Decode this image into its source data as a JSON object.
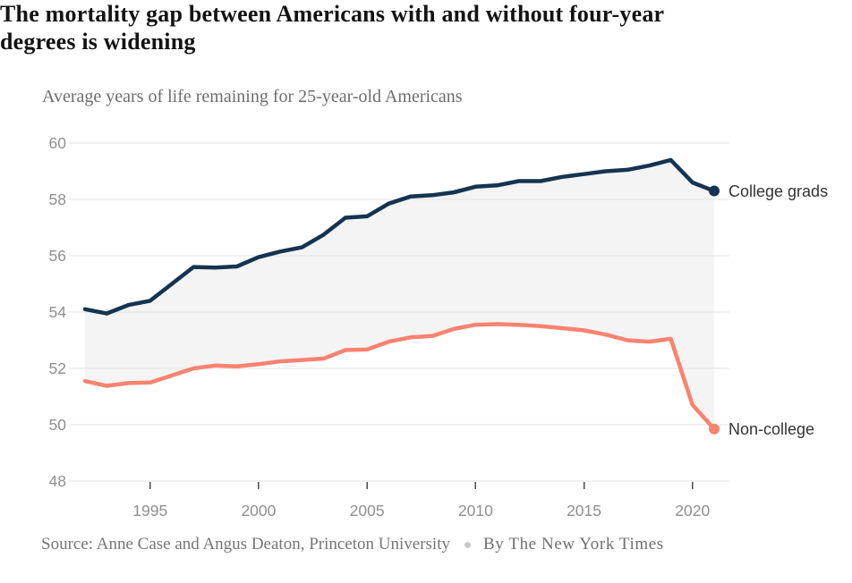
{
  "header": {
    "title_line1": "The mortality gap between Americans with and without four-year",
    "title_line2": "degrees is widening",
    "subtitle": "Average years of life remaining for 25-year-old Americans"
  },
  "footer": {
    "source": "Source: Anne Case and Angus Deaton, Princeton University",
    "byline": "By The New York Times"
  },
  "chart_data": {
    "type": "line",
    "title": "The mortality gap between Americans with and without four-year degrees is widening",
    "subtitle": "Average years of life remaining for 25-year-old Americans",
    "xlabel": "",
    "ylabel": "",
    "x": [
      1992,
      1993,
      1994,
      1995,
      1996,
      1997,
      1998,
      1999,
      2000,
      2001,
      2002,
      2003,
      2004,
      2005,
      2006,
      2007,
      2008,
      2009,
      2010,
      2011,
      2012,
      2013,
      2014,
      2015,
      2016,
      2017,
      2018,
      2019,
      2020,
      2021
    ],
    "series": [
      {
        "name": "College grads",
        "color": "#143451",
        "values": [
          54.1,
          53.95,
          54.25,
          54.4,
          55.0,
          55.6,
          55.58,
          55.62,
          55.95,
          56.15,
          56.3,
          56.75,
          57.35,
          57.4,
          57.85,
          58.1,
          58.15,
          58.25,
          58.45,
          58.5,
          58.65,
          58.65,
          58.8,
          58.9,
          59.0,
          59.05,
          59.2,
          59.4,
          58.6,
          58.3
        ]
      },
      {
        "name": "Non-college",
        "color": "#F9836F",
        "values": [
          51.55,
          51.38,
          51.48,
          51.5,
          51.75,
          52.0,
          52.1,
          52.07,
          52.15,
          52.25,
          52.3,
          52.35,
          52.65,
          52.67,
          52.95,
          53.1,
          53.15,
          53.4,
          53.55,
          53.57,
          53.55,
          53.5,
          53.43,
          53.35,
          53.2,
          53.0,
          52.95,
          53.05,
          50.7,
          49.85
        ]
      }
    ],
    "ylim": [
      48,
      60
    ],
    "yticks": [
      48,
      50,
      52,
      54,
      56,
      58,
      60
    ],
    "xticks": [
      1995,
      2000,
      2005,
      2010,
      2015,
      2020
    ],
    "grid": "horizontal",
    "legend_position": "end-of-line-labels",
    "end_labels": [
      "College grads",
      "Non-college"
    ],
    "band_between_series": true,
    "colors": {
      "band_fill": "#F4F4F4",
      "gridline": "#E3E3E3",
      "axis_tick": "#4a4a4a",
      "axis_label": "#8f8f8f",
      "end_label_text": "#333333"
    }
  }
}
